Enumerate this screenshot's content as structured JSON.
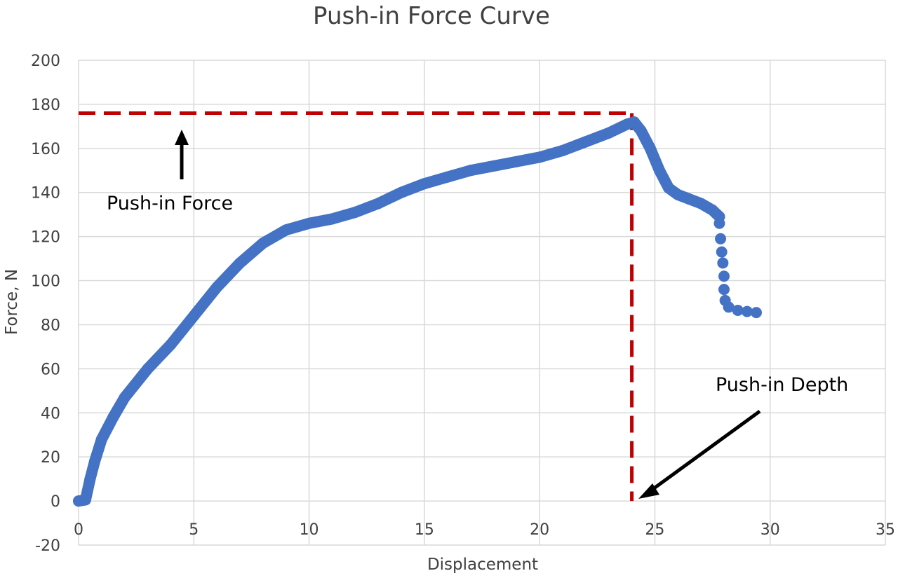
{
  "chart_data": {
    "type": "scatter",
    "title": "Push-in Force Curve",
    "xlabel": "Displacement",
    "ylabel": "Force, N",
    "xlim": [
      0,
      35
    ],
    "ylim": [
      -20,
      200
    ],
    "xticks": [
      0,
      5,
      10,
      15,
      20,
      25,
      30,
      35
    ],
    "yticks": [
      -20,
      0,
      20,
      40,
      60,
      80,
      100,
      120,
      140,
      160,
      180,
      200
    ],
    "grid": true,
    "legend": "none",
    "series": [
      {
        "color": "#4472C4",
        "points": [
          [
            0,
            0
          ],
          [
            0.3,
            0.5
          ],
          [
            0.5,
            10
          ],
          [
            0.7,
            18
          ],
          [
            1,
            28
          ],
          [
            1.5,
            38
          ],
          [
            2,
            47
          ],
          [
            3,
            60
          ],
          [
            4,
            71
          ],
          [
            5,
            84
          ],
          [
            6,
            97
          ],
          [
            7,
            108
          ],
          [
            8,
            117
          ],
          [
            9,
            123
          ],
          [
            10,
            126
          ],
          [
            11,
            128
          ],
          [
            12,
            131
          ],
          [
            13,
            135
          ],
          [
            14,
            140
          ],
          [
            15,
            144
          ],
          [
            16,
            147
          ],
          [
            17,
            150
          ],
          [
            18,
            152
          ],
          [
            19,
            154
          ],
          [
            20,
            156
          ],
          [
            21,
            159
          ],
          [
            22,
            163
          ],
          [
            23,
            167
          ],
          [
            23.8,
            171
          ],
          [
            24.1,
            172
          ],
          [
            24.4,
            168
          ],
          [
            24.8,
            160
          ],
          [
            25.2,
            150
          ],
          [
            25.6,
            142
          ],
          [
            26,
            139
          ],
          [
            26.5,
            137
          ],
          [
            27,
            135
          ],
          [
            27.5,
            132
          ],
          [
            27.8,
            129
          ],
          [
            27.8,
            126
          ],
          [
            27.85,
            119
          ],
          [
            27.9,
            113
          ],
          [
            27.95,
            108
          ],
          [
            28,
            102
          ],
          [
            28,
            96
          ],
          [
            28.05,
            91
          ],
          [
            28.2,
            88
          ],
          [
            28.6,
            86.5
          ],
          [
            29,
            86
          ],
          [
            29.4,
            85.5
          ]
        ]
      }
    ],
    "reference_lines": {
      "color": "#C00000",
      "push_in_force_value": 176,
      "push_in_depth_value": 24
    },
    "annotations": [
      {
        "text": "Push-in Force"
      },
      {
        "text": "Push-in Depth"
      }
    ]
  }
}
